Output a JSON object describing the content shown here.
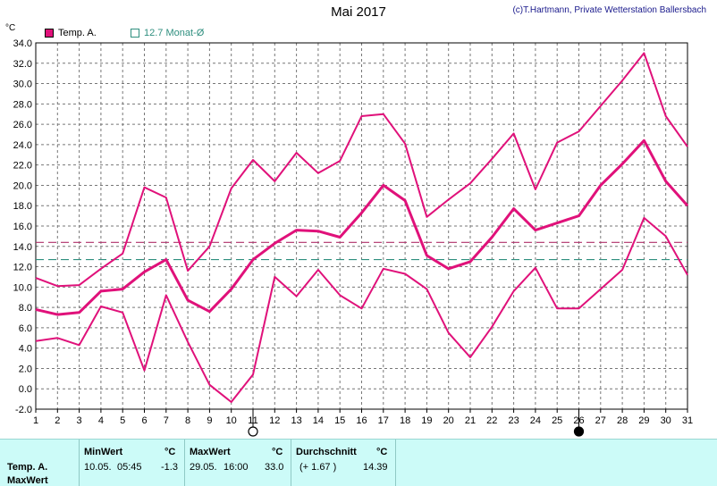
{
  "title": "Mai 2017",
  "copyright": "(c)T.Hartmann, Private Wetterstation Ballersbach",
  "unit": "°C",
  "legend": {
    "series_label": "Temp. A.",
    "avg_label": "12.7 Monat-Ø"
  },
  "colors": {
    "series": "#e0117a",
    "avg_line": "#2f8f7f",
    "mean_line": "#b0306a",
    "grid": "#777777"
  },
  "chart_data": {
    "type": "line",
    "x": [
      1,
      2,
      3,
      4,
      5,
      6,
      7,
      8,
      9,
      10,
      11,
      12,
      13,
      14,
      15,
      16,
      17,
      18,
      19,
      20,
      21,
      22,
      23,
      24,
      25,
      26,
      27,
      28,
      29,
      30,
      31
    ],
    "xticklabels": [
      "1",
      "2",
      "3",
      "4",
      "5",
      "6",
      "7",
      "8",
      "9",
      "10",
      "11",
      "12",
      "13",
      "14",
      "15",
      "16",
      "17",
      "18",
      "19",
      "20",
      "21",
      "22",
      "23",
      "24",
      "25",
      "26",
      "27",
      "28",
      "29",
      "30",
      "31"
    ],
    "ylim": [
      -2,
      34
    ],
    "yticks": [
      "-2.0",
      "0.0",
      "2.0",
      "4.0",
      "6.0",
      "8.0",
      "10.0",
      "12.0",
      "14.0",
      "16.0",
      "18.0",
      "20.0",
      "22.0",
      "24.0",
      "26.0",
      "28.0",
      "30.0",
      "32.0",
      "34.0"
    ],
    "series": [
      {
        "name": "Temp. A.",
        "role": "max",
        "values": [
          10.9,
          10.1,
          10.2,
          11.8,
          13.3,
          19.8,
          18.8,
          11.6,
          14.0,
          19.7,
          22.5,
          20.4,
          23.2,
          21.2,
          22.4,
          26.8,
          27.0,
          24.1,
          16.9,
          18.6,
          20.2,
          22.6,
          25.1,
          19.6,
          24.2,
          25.3,
          27.8,
          30.3,
          33.0,
          26.8,
          23.8
        ]
      },
      {
        "role": "mean",
        "values": [
          7.8,
          7.3,
          7.5,
          9.6,
          9.8,
          11.5,
          12.7,
          8.7,
          7.6,
          9.8,
          12.7,
          14.3,
          15.6,
          15.5,
          14.9,
          17.3,
          20.0,
          18.5,
          13.1,
          11.8,
          12.5,
          14.9,
          17.7,
          15.6,
          16.3,
          17.0,
          20.0,
          22.1,
          24.4,
          20.4,
          18.0
        ]
      },
      {
        "role": "min",
        "values": [
          4.7,
          5.0,
          4.3,
          8.1,
          7.5,
          1.8,
          9.2,
          4.6,
          0.4,
          -1.3,
          1.4,
          11.0,
          9.1,
          11.7,
          9.2,
          7.9,
          11.8,
          11.3,
          9.8,
          5.5,
          3.1,
          6.1,
          9.6,
          11.9,
          7.9,
          7.9,
          9.8,
          11.7,
          16.8,
          15.0,
          11.2
        ]
      }
    ],
    "reference_lines": [
      {
        "value": 14.39
      },
      {
        "value": 12.7
      }
    ],
    "moon_markers": [
      {
        "day": 11,
        "phase": "full"
      },
      {
        "day": 26,
        "phase": "new"
      }
    ],
    "grid": true
  },
  "table": {
    "row_label_1": "Temp. A.",
    "row_label_2": "MaxWert",
    "min": {
      "header": "MinWert",
      "unit": "°C",
      "date": "10.05.",
      "time": "05:45",
      "value": "-1.3"
    },
    "max": {
      "header": "MaxWert",
      "unit": "°C",
      "date": "29.05.",
      "time": "16:00",
      "value": "33.0"
    },
    "avg": {
      "header": "Durchschnitt",
      "unit": "°C",
      "delta": "(+ 1.67 )",
      "value": "14.39"
    }
  }
}
